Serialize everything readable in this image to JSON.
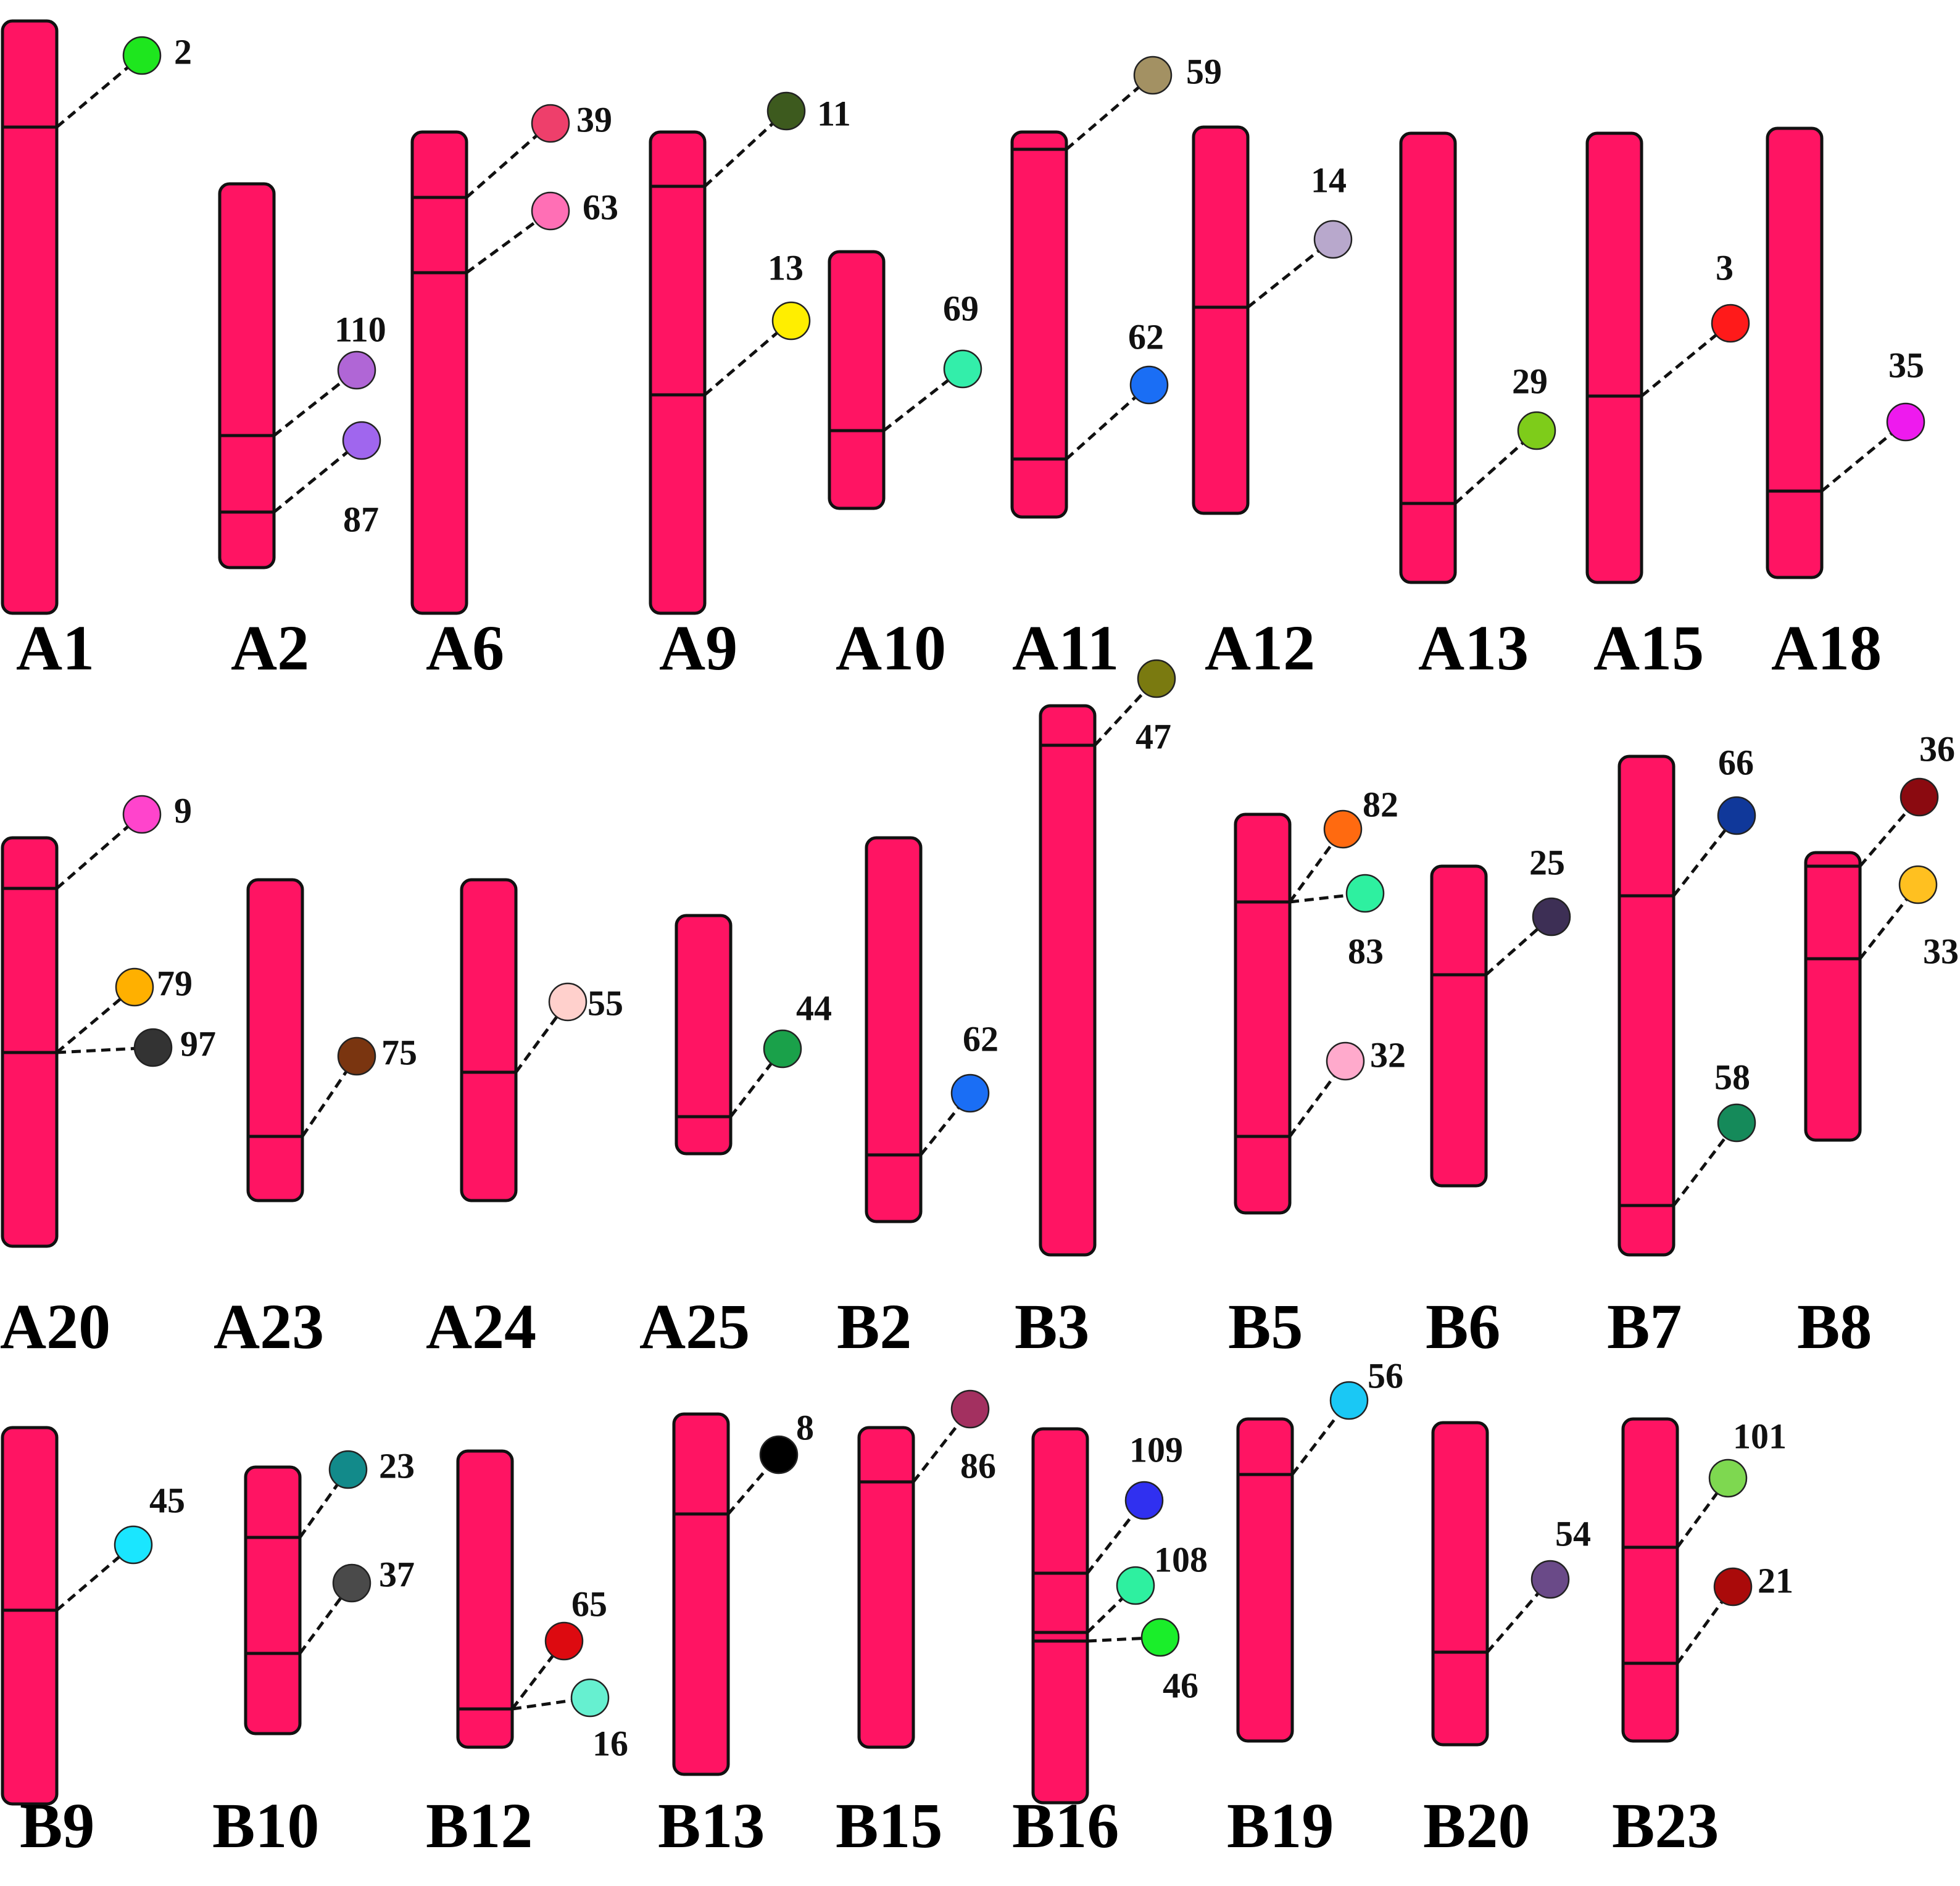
{
  "figure": {
    "title": "",
    "colors": {
      "chromosome_fill": "#ff1463",
      "outline": "#111111",
      "background": "#ffffff"
    }
  },
  "chromosomes": [
    {
      "name": "A1",
      "genes": [
        {
          "id": "2",
          "color": "#1ee61e"
        }
      ]
    },
    {
      "name": "A2",
      "genes": [
        {
          "id": "110",
          "color": "#b066d6"
        },
        {
          "id": "87",
          "color": "#a066ee"
        }
      ]
    },
    {
      "name": "A6",
      "genes": [
        {
          "id": "39",
          "color": "#ee3f6b"
        },
        {
          "id": "63",
          "color": "#ff6fb5"
        }
      ]
    },
    {
      "name": "A9",
      "genes": [
        {
          "id": "11",
          "color": "#3d5a1e"
        },
        {
          "id": "13",
          "color": "#ffee00"
        }
      ]
    },
    {
      "name": "A10",
      "genes": [
        {
          "id": "69",
          "color": "#33eeaa"
        }
      ]
    },
    {
      "name": "A11",
      "genes": [
        {
          "id": "59",
          "color": "#a39163"
        },
        {
          "id": "62",
          "color": "#1a6ef5"
        }
      ]
    },
    {
      "name": "A12",
      "genes": [
        {
          "id": "14",
          "color": "#b8a8cc"
        }
      ]
    },
    {
      "name": "A13",
      "genes": [
        {
          "id": "29",
          "color": "#7ecc1a"
        }
      ]
    },
    {
      "name": "A15",
      "genes": [
        {
          "id": "3",
          "color": "#ff1a1a"
        }
      ]
    },
    {
      "name": "A18",
      "genes": [
        {
          "id": "35",
          "color": "#ee1aee"
        }
      ]
    },
    {
      "name": "A20",
      "genes": [
        {
          "id": "9",
          "color": "#ff44cc"
        },
        {
          "id": "79",
          "color": "#ffb000"
        },
        {
          "id": "97",
          "color": "#333333"
        }
      ]
    },
    {
      "name": "A23",
      "genes": [
        {
          "id": "75",
          "color": "#7a3510"
        }
      ]
    },
    {
      "name": "A24",
      "genes": [
        {
          "id": "55",
          "color": "#ffd0cc"
        }
      ]
    },
    {
      "name": "A25",
      "genes": [
        {
          "id": "44",
          "color": "#1aa14a"
        }
      ]
    },
    {
      "name": "B2",
      "genes": [
        {
          "id": "62",
          "color": "#1a6ef5"
        }
      ]
    },
    {
      "name": "B3",
      "genes": [
        {
          "id": "47",
          "color": "#7a7a10"
        }
      ]
    },
    {
      "name": "B5",
      "genes": [
        {
          "id": "82",
          "color": "#ff6a10"
        },
        {
          "id": "83",
          "color": "#2ef0a0"
        },
        {
          "id": "32",
          "color": "#ffaacc"
        }
      ]
    },
    {
      "name": "B6",
      "genes": [
        {
          "id": "25",
          "color": "#3d2f55"
        }
      ]
    },
    {
      "name": "B7",
      "genes": [
        {
          "id": "66",
          "color": "#10389a"
        },
        {
          "id": "58",
          "color": "#158a5a"
        }
      ]
    },
    {
      "name": "B8",
      "genes": [
        {
          "id": "36",
          "color": "#8b0a10"
        },
        {
          "id": "33",
          "color": "#ffc020"
        }
      ]
    },
    {
      "name": "B9",
      "genes": [
        {
          "id": "45",
          "color": "#1ae6ff"
        }
      ]
    },
    {
      "name": "B10",
      "genes": [
        {
          "id": "23",
          "color": "#128a8a"
        },
        {
          "id": "37",
          "color": "#4a4a4a"
        }
      ]
    },
    {
      "name": "B12",
      "genes": [
        {
          "id": "65",
          "color": "#dd0a10"
        },
        {
          "id": "16",
          "color": "#66f0d0"
        }
      ]
    },
    {
      "name": "B13",
      "genes": [
        {
          "id": "8",
          "color": "#000000"
        }
      ]
    },
    {
      "name": "B15",
      "genes": [
        {
          "id": "86",
          "color": "#a33060"
        }
      ]
    },
    {
      "name": "B16",
      "genes": [
        {
          "id": "109",
          "color": "#3030f0"
        },
        {
          "id": "108",
          "color": "#2ef0a0"
        },
        {
          "id": "46",
          "color": "#1aee2a"
        }
      ]
    },
    {
      "name": "B19",
      "genes": [
        {
          "id": "56",
          "color": "#1ac8f5"
        }
      ]
    },
    {
      "name": "B20",
      "genes": [
        {
          "id": "54",
          "color": "#6a4a88"
        }
      ]
    },
    {
      "name": "B23",
      "genes": [
        {
          "id": "101",
          "color": "#7ed850"
        },
        {
          "id": "21",
          "color": "#aa0a0a"
        }
      ]
    }
  ]
}
